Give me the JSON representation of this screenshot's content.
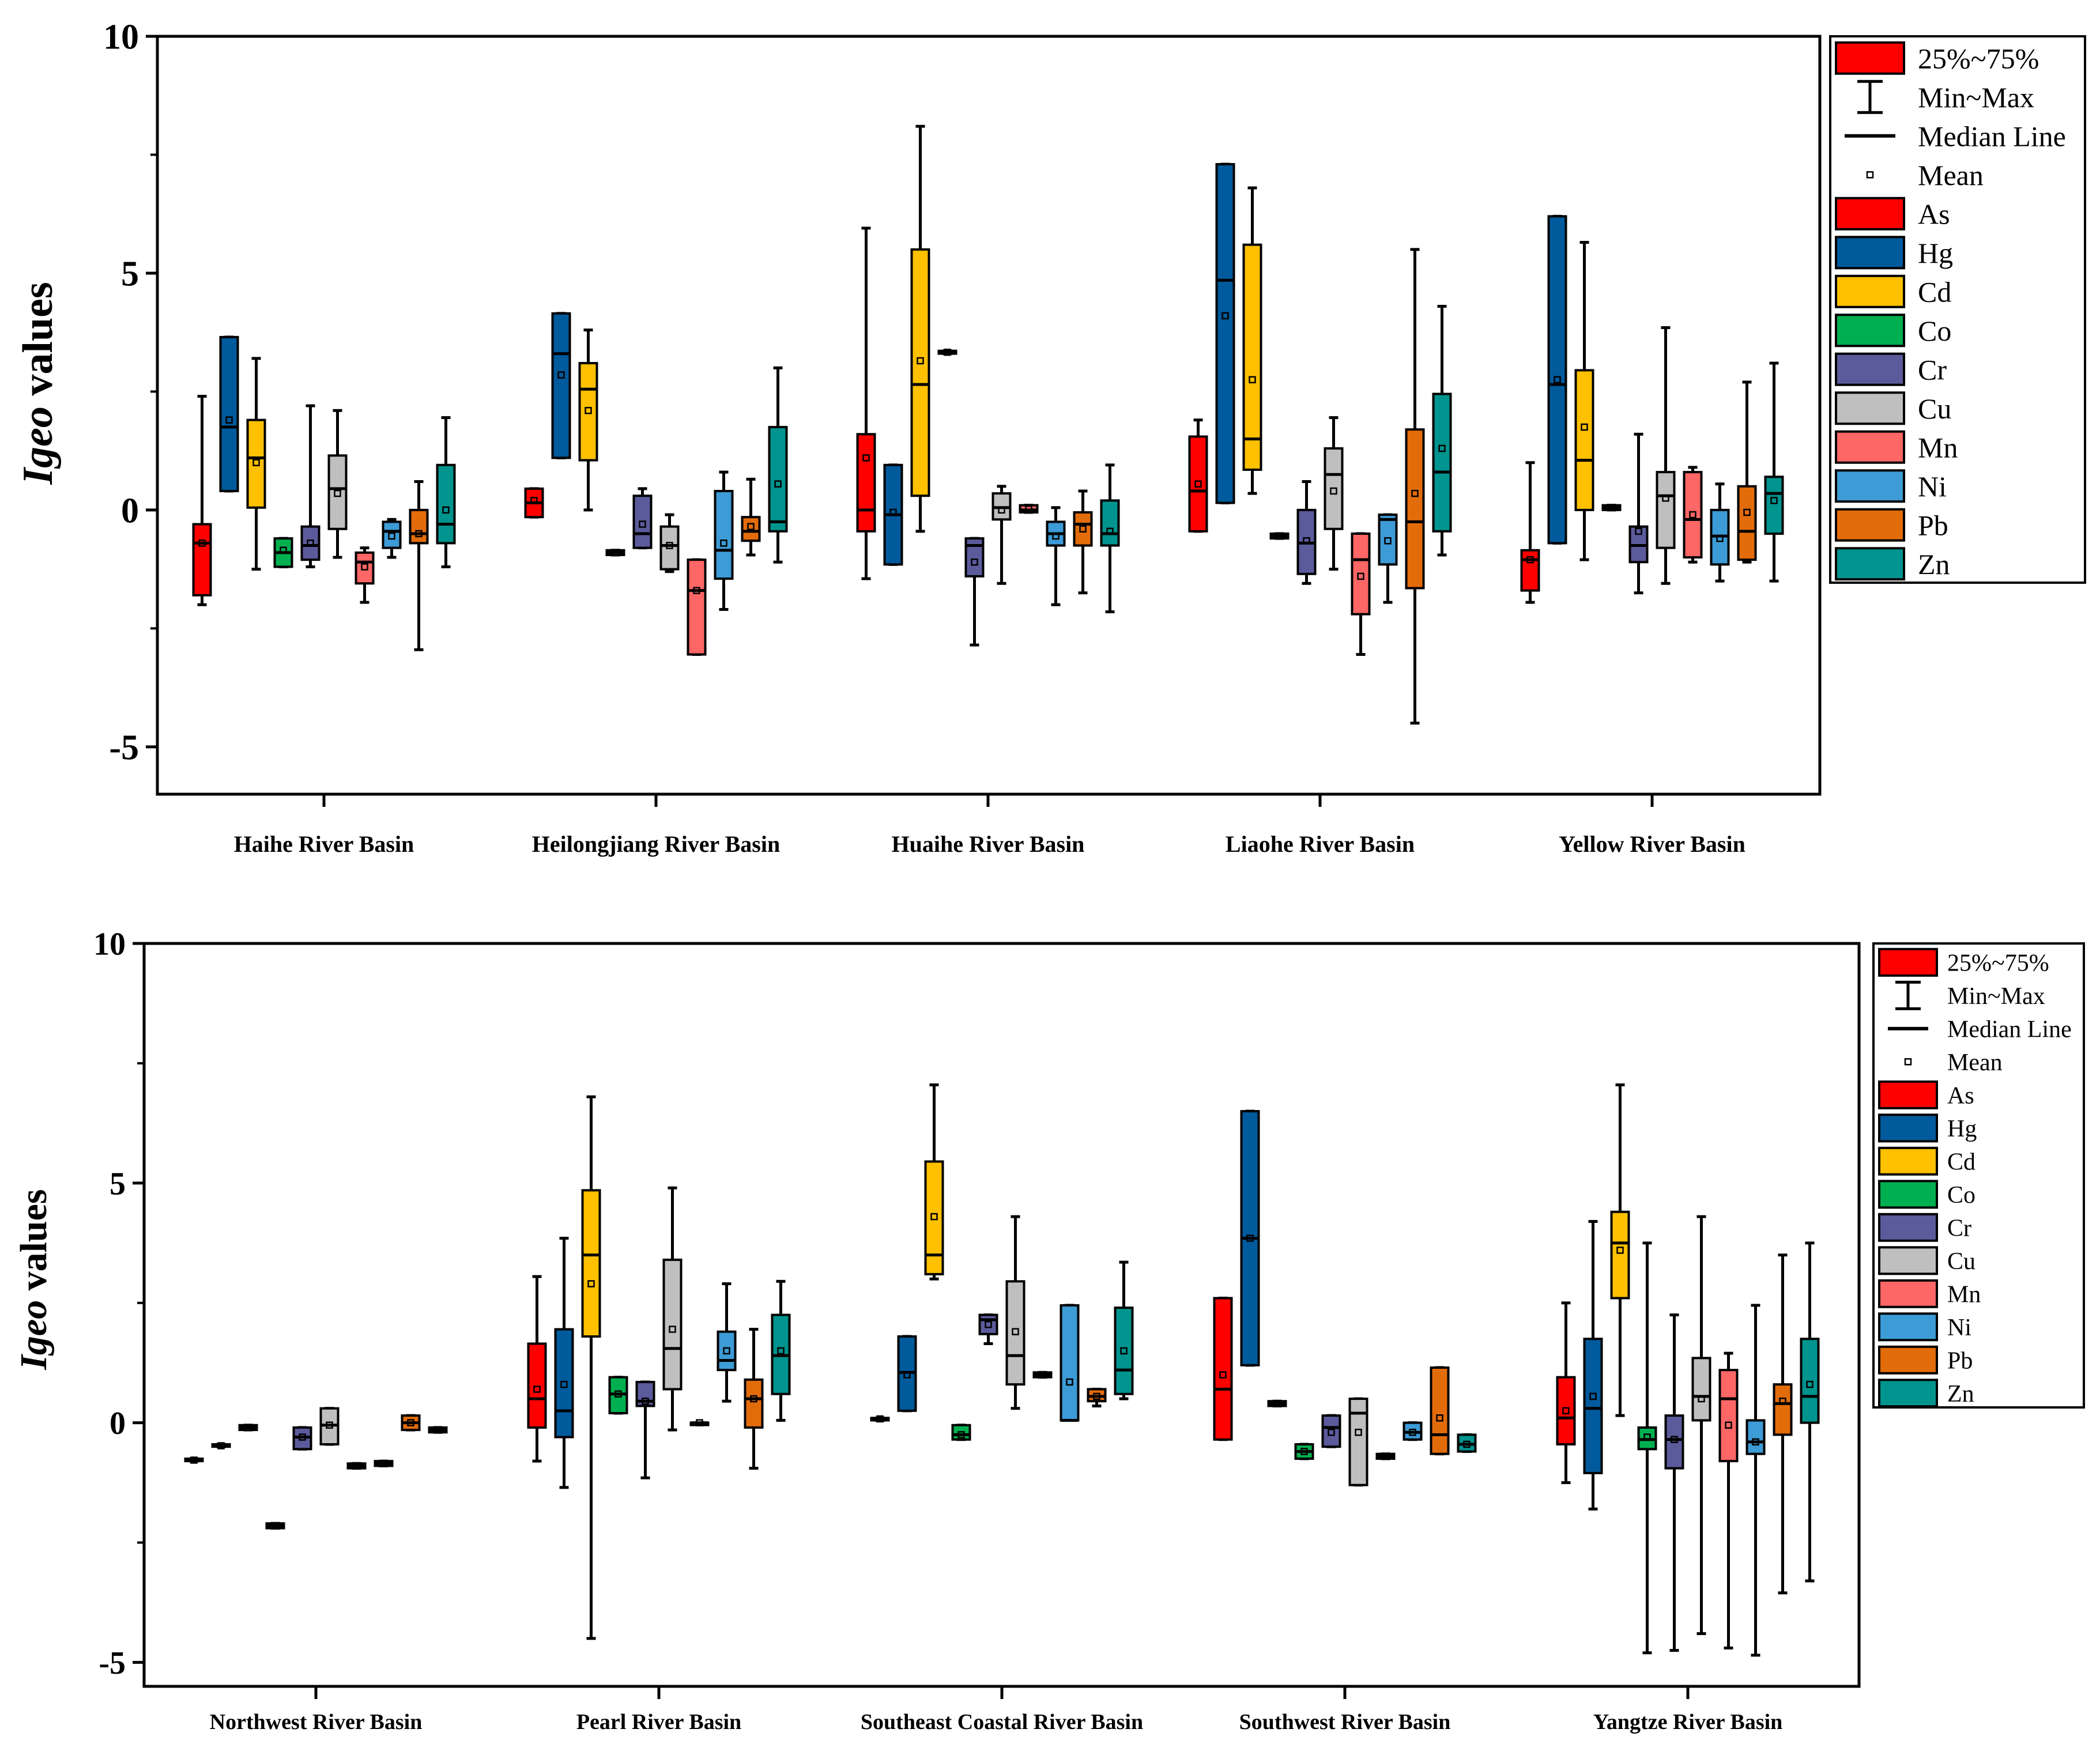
{
  "stat_legend": {
    "iqr_label": "25%~75%",
    "range_label": "Min~Max",
    "median_label": "Median Line",
    "mean_label": "Mean"
  },
  "elements": [
    "As",
    "Hg",
    "Cd",
    "Co",
    "Cr",
    "Cu",
    "Mn",
    "Ni",
    "Pb",
    "Zn"
  ],
  "colors": {
    "As": "#ff0000",
    "Hg": "#005a9c",
    "Cd": "#ffc000",
    "Co": "#00b050",
    "Cr": "#5b5b9c",
    "Cu": "#bfbfbf",
    "Mn": "#ff6666",
    "Ni": "#3d9bd6",
    "Pb": "#e36c0a",
    "Zn": "#00948e"
  },
  "chart_data": [
    {
      "type": "box",
      "ylabel_italic": "Igeo",
      "ylabel_rest": " values",
      "ylim": [
        -6,
        10
      ],
      "yticks": [
        "10",
        "5",
        "0",
        "-5"
      ],
      "categories": [
        "Haihe River Basin",
        "Heilongjiang River Basin",
        "Huaihe River Basin",
        "Liaohe River Basin",
        "Yellow River Basin"
      ],
      "boxes": [
        [
          [
            -2.0,
            -1.8,
            -0.7,
            -0.3,
            2.4,
            -0.7
          ],
          [
            0.4,
            0.4,
            1.75,
            3.65,
            3.65,
            1.9
          ],
          [
            -1.25,
            0.05,
            1.1,
            1.9,
            3.2,
            1.0
          ],
          [
            -1.2,
            -1.2,
            -0.9,
            -0.6,
            -0.6,
            -0.85
          ],
          [
            -1.2,
            -1.05,
            -0.75,
            -0.35,
            2.2,
            -0.7
          ],
          [
            -1.0,
            -0.4,
            0.45,
            1.15,
            2.1,
            0.35
          ],
          [
            -1.95,
            -1.55,
            -1.1,
            -0.9,
            -0.8,
            -1.2
          ],
          [
            -1.0,
            -0.8,
            -0.45,
            -0.25,
            -0.2,
            -0.55
          ],
          [
            -2.95,
            -0.7,
            -0.5,
            0.0,
            0.6,
            -0.5
          ],
          [
            -1.2,
            -0.7,
            -0.3,
            0.95,
            1.95,
            0.0
          ]
        ],
        [
          [
            -0.15,
            -0.15,
            0.15,
            0.45,
            0.45,
            0.2
          ],
          [
            1.1,
            1.1,
            3.3,
            4.15,
            4.15,
            2.85
          ],
          [
            0.0,
            1.05,
            2.55,
            3.1,
            3.8,
            2.1
          ],
          [
            -0.95,
            -0.95,
            -0.9,
            -0.85,
            -0.85,
            -0.9
          ],
          [
            -0.8,
            -0.8,
            -0.5,
            0.3,
            0.45,
            -0.3
          ],
          [
            -1.3,
            -1.25,
            -0.75,
            -0.35,
            -0.1,
            -0.75
          ],
          [
            -3.05,
            -3.05,
            -1.7,
            -1.05,
            -1.05,
            -1.7
          ],
          [
            -2.1,
            -1.45,
            -0.85,
            0.4,
            0.8,
            -0.7
          ],
          [
            -0.95,
            -0.65,
            -0.45,
            -0.15,
            0.65,
            -0.35
          ],
          [
            -1.1,
            -0.45,
            -0.25,
            1.75,
            3.0,
            0.55
          ]
        ],
        [
          [
            -1.45,
            -0.45,
            0.0,
            1.6,
            5.95,
            1.1
          ],
          [
            -1.15,
            -1.15,
            -0.1,
            0.95,
            0.95,
            -0.05
          ],
          [
            -0.45,
            0.3,
            2.65,
            5.5,
            8.1,
            3.15
          ],
          [
            3.3,
            3.3,
            3.33,
            3.36,
            3.36,
            3.33
          ],
          [
            -2.85,
            -1.4,
            -0.75,
            -0.6,
            -0.6,
            -1.1
          ],
          [
            -1.55,
            -0.2,
            0.05,
            0.35,
            0.5,
            0.0
          ],
          [
            -0.05,
            -0.05,
            0.0,
            0.1,
            0.1,
            0.02
          ],
          [
            -2.0,
            -0.75,
            -0.5,
            -0.25,
            0.05,
            -0.55
          ],
          [
            -1.75,
            -0.75,
            -0.3,
            -0.05,
            0.4,
            -0.4
          ],
          [
            -2.15,
            -0.75,
            -0.5,
            0.2,
            0.95,
            -0.45
          ]
        ],
        [
          [
            -0.45,
            -0.45,
            0.4,
            1.55,
            1.9,
            0.55
          ],
          [
            0.15,
            0.15,
            4.85,
            7.3,
            7.3,
            4.1
          ],
          [
            0.35,
            0.85,
            1.5,
            5.6,
            6.8,
            2.75
          ],
          [
            -0.6,
            -0.6,
            -0.55,
            -0.5,
            -0.5,
            -0.55
          ],
          [
            -1.55,
            -1.35,
            -0.7,
            0.0,
            0.6,
            -0.65
          ],
          [
            -1.25,
            -0.4,
            0.75,
            1.3,
            1.95,
            0.4
          ],
          [
            -3.05,
            -2.2,
            -1.05,
            -0.5,
            -0.5,
            -1.4
          ],
          [
            -1.95,
            -1.15,
            -0.2,
            -0.1,
            -0.1,
            -0.65
          ],
          [
            -4.5,
            -1.65,
            -0.25,
            1.7,
            5.5,
            0.35
          ],
          [
            -0.95,
            -0.45,
            0.8,
            2.45,
            4.3,
            1.3
          ]
        ],
        [
          [
            -1.95,
            -1.7,
            -1.05,
            -0.85,
            1.0,
            -1.05
          ],
          [
            -0.7,
            -0.7,
            2.65,
            6.2,
            6.2,
            2.75
          ],
          [
            -1.05,
            0.0,
            1.05,
            2.95,
            5.65,
            1.75
          ],
          [
            0.0,
            0.0,
            0.05,
            0.1,
            0.1,
            0.05
          ],
          [
            -1.75,
            -1.1,
            -0.75,
            -0.35,
            1.6,
            -0.45
          ],
          [
            -1.55,
            -0.8,
            0.3,
            0.8,
            3.85,
            0.25
          ],
          [
            -1.1,
            -1.0,
            -0.2,
            0.8,
            0.9,
            -0.1
          ],
          [
            -1.5,
            -1.15,
            -0.55,
            0.0,
            0.55,
            -0.6
          ],
          [
            -1.1,
            -1.05,
            -0.45,
            0.5,
            2.7,
            -0.05
          ],
          [
            -1.5,
            -0.5,
            0.35,
            0.7,
            3.1,
            0.2
          ]
        ]
      ]
    },
    {
      "type": "box",
      "ylabel_italic": "Igeo",
      "ylabel_rest": " values",
      "ylim": [
        -5.5,
        10
      ],
      "yticks": [
        "10",
        "5",
        "0",
        "-5"
      ],
      "categories": [
        "Northwest River Basin",
        "Pearl River Basin",
        "Southeast Coastal River Basin",
        "Southwest River Basin",
        "Yangtze River Basin"
      ],
      "boxes": [
        [
          [
            -0.8,
            -0.8,
            -0.78,
            -0.75,
            -0.75,
            -0.78
          ],
          [
            -0.5,
            -0.5,
            -0.48,
            -0.45,
            -0.45,
            -0.48
          ],
          [
            -0.15,
            -0.15,
            -0.1,
            -0.05,
            -0.05,
            -0.1
          ],
          [
            -2.2,
            -2.2,
            -2.15,
            -2.1,
            -2.1,
            -2.15
          ],
          [
            -0.55,
            -0.55,
            -0.3,
            -0.1,
            -0.1,
            -0.3
          ],
          [
            -0.45,
            -0.45,
            -0.05,
            0.3,
            0.3,
            -0.05
          ],
          [
            -0.95,
            -0.95,
            -0.9,
            -0.85,
            -0.85,
            -0.9
          ],
          [
            -0.9,
            -0.9,
            -0.85,
            -0.8,
            -0.8,
            -0.85
          ],
          [
            -0.15,
            -0.15,
            0.0,
            0.15,
            0.15,
            0.0
          ],
          [
            -0.2,
            -0.2,
            -0.15,
            -0.1,
            -0.1,
            -0.15
          ]
        ],
        [
          [
            -0.8,
            -0.1,
            0.5,
            1.65,
            3.05,
            0.7
          ],
          [
            -1.35,
            -0.3,
            0.25,
            1.95,
            3.85,
            0.8
          ],
          [
            -4.5,
            1.8,
            3.5,
            4.85,
            6.8,
            2.9
          ],
          [
            0.2,
            0.2,
            0.6,
            0.95,
            0.95,
            0.6
          ],
          [
            -1.15,
            0.35,
            0.45,
            0.85,
            0.85,
            0.45
          ],
          [
            -0.15,
            0.7,
            1.55,
            3.4,
            4.9,
            1.95
          ],
          [
            0.0,
            0.0,
            0.0,
            0.0,
            0.0,
            0.0
          ],
          [
            0.45,
            1.1,
            1.3,
            1.9,
            2.9,
            1.5
          ],
          [
            -0.95,
            -0.1,
            0.5,
            0.9,
            1.95,
            0.5
          ],
          [
            0.05,
            0.6,
            1.4,
            2.25,
            2.95,
            1.5
          ]
        ],
        [
          [
            0.05,
            0.05,
            0.08,
            0.1,
            0.1,
            0.08
          ],
          [
            0.25,
            0.25,
            1.05,
            1.8,
            1.8,
            1.0
          ],
          [
            3.0,
            3.1,
            3.5,
            5.45,
            7.05,
            4.3
          ],
          [
            -0.35,
            -0.35,
            -0.25,
            -0.05,
            -0.05,
            -0.25
          ],
          [
            1.65,
            1.85,
            2.15,
            2.25,
            2.25,
            2.05
          ],
          [
            0.3,
            0.8,
            1.4,
            2.95,
            4.3,
            1.9
          ],
          [
            0.95,
            0.95,
            1.0,
            1.05,
            1.05,
            1.0
          ],
          [
            0.05,
            0.05,
            0.05,
            2.45,
            2.45,
            0.85
          ],
          [
            0.35,
            0.45,
            0.55,
            0.7,
            0.7,
            0.55
          ],
          [
            0.5,
            0.6,
            1.1,
            2.4,
            3.35,
            1.5
          ]
        ],
        [
          [
            -0.35,
            -0.35,
            0.7,
            2.6,
            2.6,
            1.0
          ],
          [
            1.2,
            1.2,
            3.85,
            6.5,
            6.5,
            3.85
          ],
          [
            0.35,
            0.35,
            0.4,
            0.45,
            0.45,
            0.4
          ],
          [
            -0.75,
            -0.75,
            -0.6,
            -0.45,
            -0.45,
            -0.6
          ],
          [
            -0.5,
            -0.5,
            -0.1,
            0.15,
            0.15,
            -0.2
          ],
          [
            -1.3,
            -1.3,
            0.2,
            0.5,
            0.5,
            -0.2
          ],
          [
            -0.75,
            -0.75,
            -0.7,
            -0.65,
            -0.65,
            -0.7
          ],
          [
            -0.35,
            -0.35,
            -0.2,
            0.0,
            0.0,
            -0.2
          ],
          [
            -0.65,
            -0.65,
            -0.25,
            1.15,
            1.15,
            0.1
          ],
          [
            -0.6,
            -0.6,
            -0.45,
            -0.25,
            -0.25,
            -0.45
          ]
        ],
        [
          [
            -1.25,
            -0.45,
            0.1,
            0.95,
            2.5,
            0.25
          ],
          [
            -1.8,
            -1.05,
            0.3,
            1.75,
            4.2,
            0.55
          ],
          [
            0.15,
            2.6,
            3.75,
            4.4,
            7.05,
            3.6
          ],
          [
            -4.8,
            -0.55,
            -0.35,
            -0.1,
            3.75,
            -0.3
          ],
          [
            -4.75,
            -0.95,
            -0.35,
            0.15,
            2.25,
            -0.35
          ],
          [
            -4.4,
            0.05,
            0.55,
            1.35,
            4.3,
            0.5
          ],
          [
            -4.7,
            -0.8,
            0.5,
            1.1,
            1.45,
            -0.05
          ],
          [
            -4.85,
            -0.65,
            -0.4,
            0.05,
            2.45,
            -0.4
          ],
          [
            -3.55,
            -0.25,
            0.4,
            0.8,
            3.5,
            0.45
          ],
          [
            -3.3,
            0.0,
            0.55,
            1.75,
            3.75,
            0.8
          ]
        ]
      ]
    }
  ]
}
